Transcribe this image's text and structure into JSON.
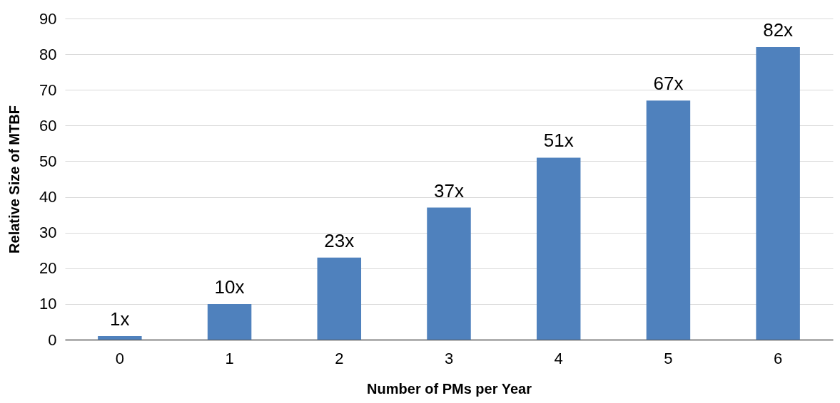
{
  "chart_data": {
    "type": "bar",
    "xlabel": "Number of PMs per Year",
    "ylabel": "Relative Size of MTBF",
    "categories": [
      "0",
      "1",
      "2",
      "3",
      "4",
      "5",
      "6"
    ],
    "values": [
      1,
      10,
      23,
      37,
      51,
      67,
      82
    ],
    "value_labels": [
      "1x",
      "10x",
      "23x",
      "37x",
      "51x",
      "67x",
      "82x"
    ],
    "color": "#4f81bd",
    "ylim": [
      0,
      90
    ],
    "yticks": [
      0,
      10,
      20,
      30,
      40,
      50,
      60,
      70,
      80,
      90
    ],
    "grid": "y"
  }
}
